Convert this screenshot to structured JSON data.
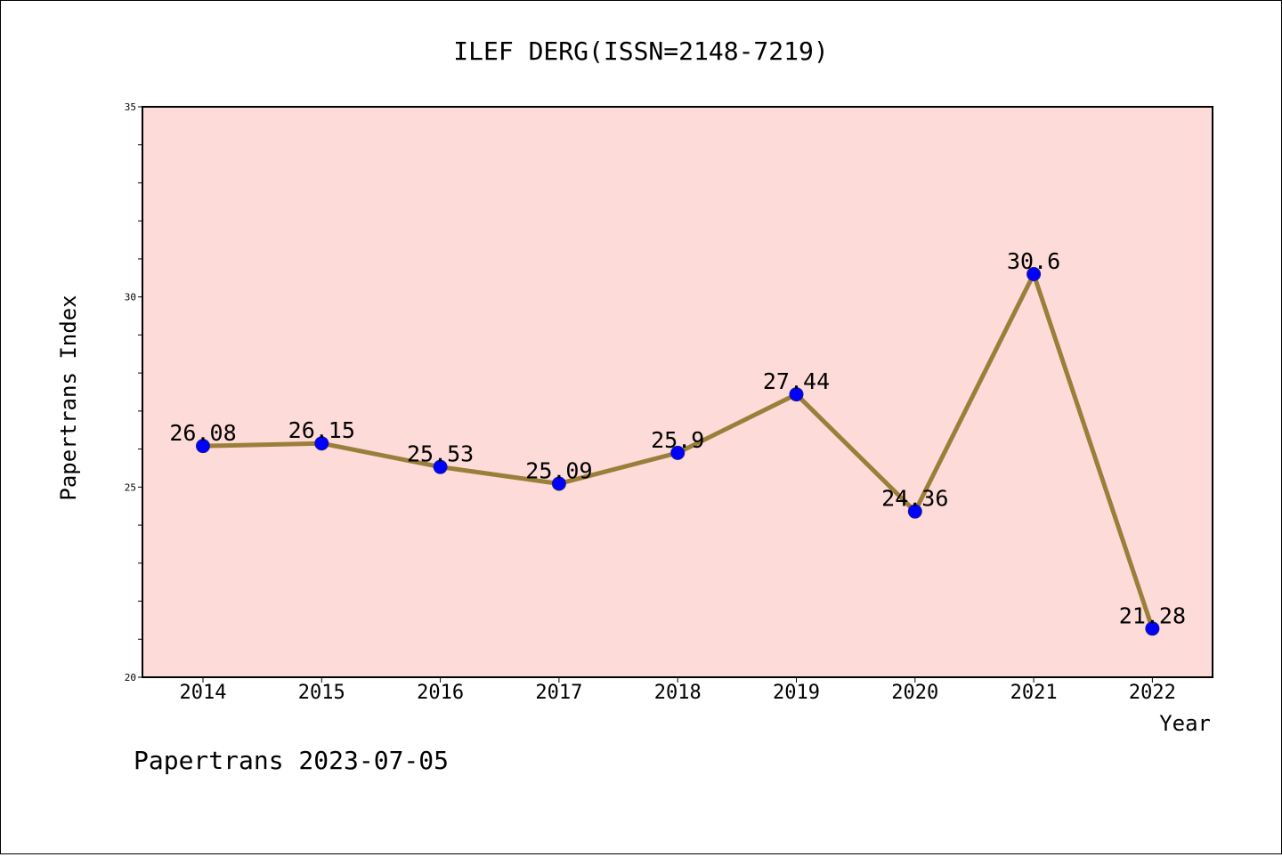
{
  "chart_data": {
    "type": "line",
    "title": "ILEF DERG(ISSN=2148-7219)",
    "xlabel": "Year",
    "ylabel": "Papertrans Index",
    "categories": [
      "2014",
      "2015",
      "2016",
      "2017",
      "2018",
      "2019",
      "2020",
      "2021",
      "2022"
    ],
    "values": [
      26.08,
      26.15,
      25.53,
      25.09,
      25.9,
      27.44,
      24.36,
      30.6,
      21.28
    ],
    "value_labels": [
      "26.08",
      "26.15",
      "25.53",
      "25.09",
      "25.9",
      "27.44",
      "24.36",
      "30.6",
      "21.28"
    ],
    "ylim": [
      20,
      35
    ],
    "yticks": [
      "20",
      "25",
      "30",
      "35"
    ],
    "grid": false,
    "colors": {
      "plot_background": "#fddbd8",
      "line": "#9a7f3a",
      "marker": "#0000ff"
    }
  },
  "footer": "Papertrans 2023-07-05"
}
